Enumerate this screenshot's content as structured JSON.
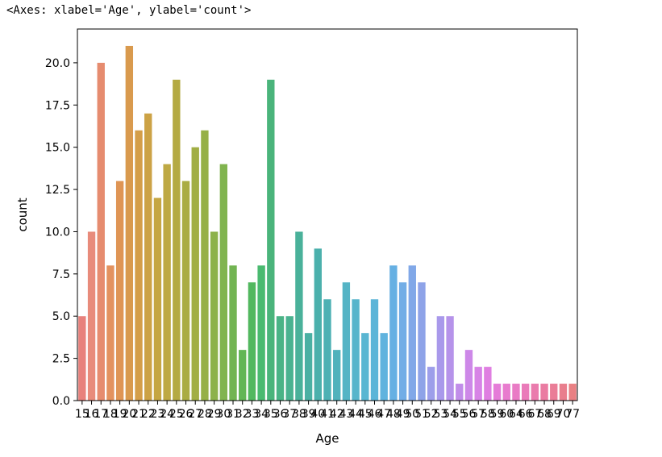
{
  "output_repr": "<Axes: xlabel='Age', ylabel='count'>",
  "chart_data": {
    "type": "bar",
    "xlabel": "Age",
    "ylabel": "count",
    "ylim": [
      0,
      22
    ],
    "yticks": [
      "0.0",
      "2.5",
      "5.0",
      "7.5",
      "10.0",
      "12.5",
      "15.0",
      "17.5",
      "20.0"
    ],
    "grid": false,
    "legend": "none",
    "categories": [
      "15",
      "16",
      "17",
      "18",
      "19",
      "20",
      "21",
      "22",
      "23",
      "24",
      "25",
      "26",
      "27",
      "28",
      "29",
      "30",
      "31",
      "32",
      "33",
      "34",
      "35",
      "36",
      "37",
      "38",
      "39",
      "40",
      "41",
      "42",
      "43",
      "44",
      "45",
      "46",
      "47",
      "48",
      "49",
      "50",
      "51",
      "52",
      "53",
      "54",
      "55",
      "56",
      "57",
      "58",
      "59",
      "60",
      "64",
      "66",
      "67",
      "68",
      "69",
      "70",
      "77"
    ],
    "values": [
      5,
      10,
      20,
      8,
      13,
      21,
      16,
      17,
      12,
      14,
      19,
      13,
      15,
      16,
      10,
      14,
      8,
      3,
      7,
      8,
      19,
      5,
      5,
      10,
      4,
      9,
      6,
      3,
      7,
      6,
      4,
      6,
      4,
      8,
      7,
      8,
      7,
      2,
      5,
      5,
      1,
      3,
      2,
      2,
      1,
      1,
      1,
      1,
      1,
      1,
      1,
      1,
      1
    ],
    "colors": [
      "#e8817c",
      "#e88b7b",
      "#e68c6f",
      "#e3925f",
      "#df9555",
      "#d99a4e",
      "#d49e49",
      "#cca245",
      "#c5a643",
      "#bea944",
      "#b4aa43",
      "#aaac43",
      "#a1ae44",
      "#96b047",
      "#8cb24a",
      "#81b44f",
      "#72b452",
      "#62b655",
      "#52b85f",
      "#4aba70",
      "#4ab47b",
      "#4ab386",
      "#4ab290",
      "#4ab19a",
      "#4ab0a3",
      "#4bb0ac",
      "#4eb1b4",
      "#51b2bc",
      "#55b4c5",
      "#57b5cb",
      "#59b6d2",
      "#5cb5d8",
      "#60b3de",
      "#66b0e3",
      "#72ade6",
      "#81a8e8",
      "#8ea3e8",
      "#9d9eea",
      "#a999eb",
      "#b693ea",
      "#c18de9",
      "#cd88e8",
      "#d783e6",
      "#df7fe1",
      "#e57cd8",
      "#e87bce",
      "#e97bc5",
      "#ea7ab9",
      "#ea7bad",
      "#ea7ca2",
      "#ea7d97",
      "#e97e8d",
      "#e98083"
    ]
  }
}
